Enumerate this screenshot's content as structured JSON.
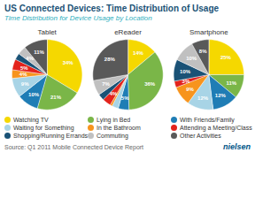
{
  "chart_data": {
    "type": "pie",
    "title": "US Connected Devices: Time Distribution of Usage",
    "subtitle": "Time Distribution for Device Usage by Location",
    "categories": [
      "Watching TV",
      "Lying in Bed",
      "With Friends/Family",
      "Waiting for Something",
      "In the Bathroom",
      "Attending a Meeting/Class",
      "Shopping/Running Errands",
      "Commuting",
      "Other Activities"
    ],
    "colors": [
      "#f5d800",
      "#7ab648",
      "#1f7db5",
      "#a8d4e6",
      "#f7941d",
      "#e3231c",
      "#1a5276",
      "#c0c0c0",
      "#595959"
    ],
    "series": [
      {
        "name": "Tablet",
        "values": [
          34,
          21,
          10,
          9,
          4,
          5,
          3,
          4,
          11
        ],
        "value_labels": [
          "34%",
          "21%",
          "10%",
          "9%",
          "4%",
          "5%",
          null,
          "4%",
          "11%"
        ]
      },
      {
        "name": "eReader",
        "values": [
          14,
          36,
          5,
          3,
          1,
          4,
          3,
          7,
          28
        ],
        "value_labels": [
          "14%",
          "36%",
          "5%",
          null,
          null,
          "4%",
          null,
          "7%",
          "28%"
        ]
      },
      {
        "name": "Smartphone",
        "values": [
          25,
          11,
          12,
          12,
          9,
          3,
          10,
          10,
          8
        ],
        "value_labels": [
          "25%",
          "11%",
          "12%",
          "12%",
          "9%",
          "3%",
          "10%",
          "10%",
          "8%"
        ]
      }
    ],
    "data_labels": true,
    "legend": "bottom",
    "annotations": [
      "Source: Q1 2011 Mobile Connected Device Report",
      "nielsen"
    ]
  }
}
